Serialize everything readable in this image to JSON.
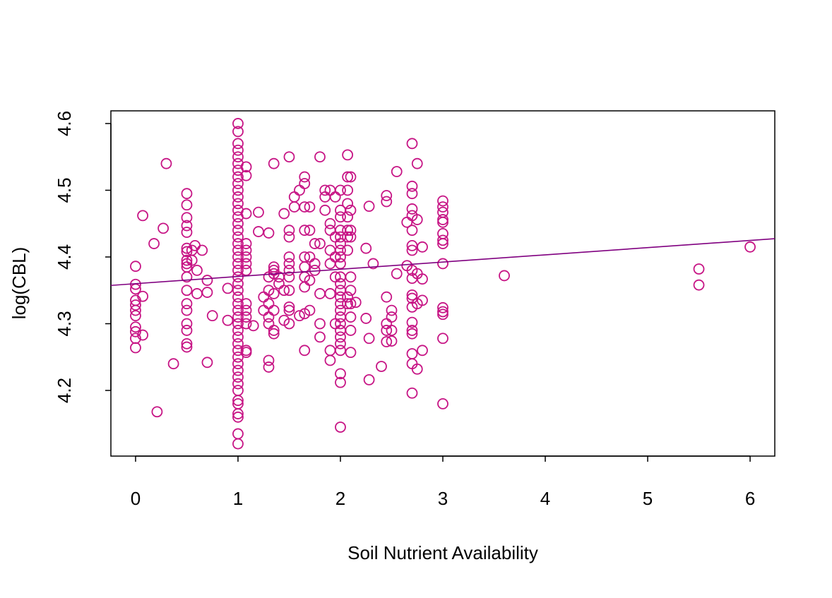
{
  "chart_data": {
    "type": "scatter",
    "x_label": "Soil Nutrient Availability",
    "y_label": "log(CBL)",
    "color": "#c71585",
    "line": {
      "intercept": 4.36,
      "slope": 0.0108,
      "color": "#800080"
    },
    "xlim": [
      -0.241,
      6.241
    ],
    "ylim": [
      4.1016,
      4.619
    ],
    "xticks": [
      0,
      1,
      2,
      3,
      4,
      5,
      6
    ],
    "yticks": [
      4.2,
      4.3,
      4.4,
      4.5,
      4.6
    ],
    "x": [
      0,
      0,
      0,
      0,
      0,
      0,
      0,
      0,
      0,
      0,
      0,
      0.07,
      0.07,
      0.07,
      0.18,
      0.21,
      0.27,
      0.3,
      0.37,
      0.5,
      0.5,
      0.5,
      0.5,
      0.5,
      0.5,
      0.5,
      0.5,
      0.5,
      0.5,
      0.5,
      0.5,
      0.5,
      0.5,
      0.5,
      0.5,
      0.5,
      0.5,
      0.55,
      0.55,
      0.58,
      0.6,
      0.6,
      0.65,
      0.7,
      0.7,
      0.7,
      0.75,
      0.9,
      0.9,
      1,
      1,
      1,
      1,
      1,
      1,
      1,
      1,
      1,
      1,
      1,
      1,
      1,
      1,
      1,
      1,
      1,
      1,
      1,
      1,
      1,
      1,
      1,
      1,
      1,
      1,
      1,
      1,
      1,
      1,
      1,
      1,
      1,
      1,
      1,
      1,
      1,
      1,
      1,
      1,
      1,
      1,
      1,
      1,
      1,
      1,
      1.08,
      1.08,
      1.08,
      1.08,
      1.08,
      1.08,
      1.08,
      1.08,
      1.08,
      1.08,
      1.08,
      1.08,
      1.08,
      1.08,
      1.15,
      1.2,
      1.2,
      1.25,
      1.25,
      1.3,
      1.3,
      1.3,
      1.3,
      1.3,
      1.3,
      1.3,
      1.3,
      1.35,
      1.35,
      1.35,
      1.35,
      1.35,
      1.35,
      1.35,
      1.35,
      1.4,
      1.4,
      1.45,
      1.45,
      1.45,
      1.5,
      1.5,
      1.5,
      1.5,
      1.5,
      1.5,
      1.5,
      1.5,
      1.5,
      1.5,
      1.5,
      1.55,
      1.55,
      1.6,
      1.6,
      1.65,
      1.65,
      1.65,
      1.65,
      1.65,
      1.65,
      1.65,
      1.65,
      1.65,
      1.65,
      1.7,
      1.7,
      1.7,
      1.7,
      1.7,
      1.75,
      1.75,
      1.75,
      1.8,
      1.8,
      1.8,
      1.8,
      1.8,
      1.85,
      1.85,
      1.85,
      1.9,
      1.9,
      1.9,
      1.9,
      1.9,
      1.9,
      1.9,
      1.9,
      1.95,
      1.95,
      1.95,
      1.95,
      1.95,
      2,
      2,
      2,
      2,
      2,
      2,
      2,
      2,
      2,
      2,
      2,
      2,
      2,
      2,
      2,
      2,
      2,
      2,
      2,
      2,
      2,
      2,
      2,
      2,
      2.07,
      2.07,
      2.07,
      2.07,
      2.07,
      2.07,
      2.07,
      2.07,
      2.07,
      2.07,
      2.1,
      2.1,
      2.1,
      2.1,
      2.1,
      2.1,
      2.1,
      2.1,
      2.1,
      2.1,
      2.15,
      2.25,
      2.25,
      2.28,
      2.28,
      2.28,
      2.32,
      2.4,
      2.45,
      2.45,
      2.45,
      2.45,
      2.45,
      2.45,
      2.5,
      2.5,
      2.5,
      2.5,
      2.55,
      2.55,
      2.65,
      2.65,
      2.7,
      2.7,
      2.7,
      2.7,
      2.7,
      2.7,
      2.7,
      2.7,
      2.7,
      2.7,
      2.7,
      2.7,
      2.7,
      2.7,
      2.7,
      2.7,
      2.7,
      2.7,
      2.7,
      2.75,
      2.75,
      2.75,
      2.75,
      2.75,
      2.8,
      2.8,
      2.8,
      2.8,
      3,
      3,
      3,
      3,
      3,
      3,
      3,
      3,
      3,
      3,
      3,
      3,
      3,
      3,
      3.6,
      5.5,
      5.5,
      6
    ],
    "values": [
      4.386,
      4.359,
      4.352,
      4.335,
      4.328,
      4.32,
      4.312,
      4.295,
      4.288,
      4.278,
      4.264,
      4.462,
      4.341,
      4.283,
      4.42,
      4.168,
      4.443,
      4.54,
      4.24,
      4.495,
      4.478,
      4.459,
      4.447,
      4.437,
      4.413,
      4.408,
      4.395,
      4.39,
      4.385,
      4.37,
      4.35,
      4.33,
      4.32,
      4.3,
      4.29,
      4.27,
      4.265,
      4.41,
      4.395,
      4.417,
      4.345,
      4.38,
      4.41,
      4.365,
      4.347,
      4.242,
      4.312,
      4.353,
      4.305,
      4.6,
      4.588,
      4.57,
      4.56,
      4.55,
      4.54,
      4.53,
      4.52,
      4.51,
      4.5,
      4.49,
      4.48,
      4.47,
      4.46,
      4.45,
      4.44,
      4.43,
      4.42,
      4.41,
      4.4,
      4.39,
      4.38,
      4.37,
      4.36,
      4.35,
      4.34,
      4.33,
      4.32,
      4.31,
      4.3,
      4.29,
      4.28,
      4.27,
      4.26,
      4.25,
      4.24,
      4.23,
      4.22,
      4.21,
      4.2,
      4.185,
      4.18,
      4.165,
      4.16,
      4.135,
      4.12,
      4.535,
      4.522,
      4.465,
      4.42,
      4.41,
      4.4,
      4.39,
      4.38,
      4.33,
      4.32,
      4.31,
      4.3,
      4.26,
      4.257,
      4.297,
      4.467,
      4.438,
      4.32,
      4.34,
      4.436,
      4.37,
      4.35,
      4.33,
      4.31,
      4.3,
      4.245,
      4.235,
      4.54,
      4.385,
      4.38,
      4.375,
      4.345,
      4.32,
      4.29,
      4.285,
      4.37,
      4.36,
      4.465,
      4.35,
      4.305,
      4.55,
      4.44,
      4.43,
      4.4,
      4.39,
      4.38,
      4.37,
      4.35,
      4.325,
      4.32,
      4.3,
      4.49,
      4.475,
      4.5,
      4.312,
      4.52,
      4.51,
      4.475,
      4.44,
      4.4,
      4.385,
      4.37,
      4.355,
      4.315,
      4.26,
      4.475,
      4.44,
      4.4,
      4.365,
      4.32,
      4.42,
      4.39,
      4.38,
      4.55,
      4.42,
      4.345,
      4.3,
      4.28,
      4.5,
      4.49,
      4.47,
      4.5,
      4.45,
      4.44,
      4.41,
      4.39,
      4.345,
      4.26,
      4.245,
      4.49,
      4.43,
      4.4,
      4.37,
      4.3,
      4.5,
      4.47,
      4.46,
      4.44,
      4.43,
      4.42,
      4.41,
      4.4,
      4.39,
      4.37,
      4.36,
      4.35,
      4.34,
      4.33,
      4.32,
      4.31,
      4.3,
      4.29,
      4.28,
      4.27,
      4.26,
      4.225,
      4.212,
      4.145,
      4.553,
      4.52,
      4.5,
      4.48,
      4.46,
      4.44,
      4.43,
      4.41,
      4.34,
      4.33,
      4.52,
      4.47,
      4.44,
      4.43,
      4.37,
      4.35,
      4.33,
      4.31,
      4.29,
      4.257,
      4.332,
      4.413,
      4.308,
      4.476,
      4.278,
      4.216,
      4.39,
      4.236,
      4.492,
      4.483,
      4.34,
      4.3,
      4.29,
      4.273,
      4.32,
      4.31,
      4.29,
      4.274,
      4.528,
      4.375,
      4.452,
      4.387,
      4.57,
      4.506,
      4.495,
      4.472,
      4.462,
      4.44,
      4.417,
      4.41,
      4.38,
      4.368,
      4.343,
      4.338,
      4.325,
      4.302,
      4.29,
      4.285,
      4.255,
      4.24,
      4.196,
      4.54,
      4.456,
      4.375,
      4.33,
      4.232,
      4.415,
      4.367,
      4.335,
      4.26,
      4.484,
      4.475,
      4.467,
      4.456,
      4.452,
      4.435,
      4.425,
      4.42,
      4.39,
      4.324,
      4.318,
      4.314,
      4.278,
      4.18,
      4.372,
      4.382,
      4.358,
      4.415
    ]
  }
}
